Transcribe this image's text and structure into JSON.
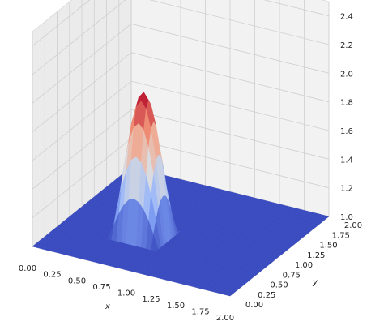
{
  "chart_data": {
    "type": "surface3d",
    "colormap": "coolwarm",
    "xlabel": "x",
    "ylabel": "y",
    "zlabel": "",
    "xlim": [
      0,
      2
    ],
    "ylim": [
      0,
      2
    ],
    "zlim": [
      1,
      2.5
    ],
    "x_ticks": [
      "0.00",
      "0.25",
      "0.50",
      "0.75",
      "1.00",
      "1.25",
      "1.50",
      "1.75",
      "2.00"
    ],
    "y_ticks": [
      "0.00",
      "0.25",
      "0.50",
      "0.75",
      "1.00",
      "1.25",
      "1.50",
      "1.75",
      "2.00"
    ],
    "z_ticks": [
      "1.0",
      "1.2",
      "1.4",
      "1.6",
      "1.8",
      "2.0",
      "2.2",
      "2.4"
    ],
    "grid": true,
    "surface": {
      "description_points": [
        {
          "x": 0.0,
          "y": 0.0,
          "z": 1.0
        },
        {
          "x": 0.5,
          "y": 0.5,
          "z": 1.0
        },
        {
          "x": 0.75,
          "y": 0.75,
          "z": 1.95
        },
        {
          "x": 1.0,
          "y": 1.0,
          "z": 1.0
        },
        {
          "x": 2.0,
          "y": 2.0,
          "z": 1.0
        }
      ],
      "base": 1.0,
      "peak": 2.0,
      "hump_x": [
        0.5,
        1.0
      ],
      "hump_y": [
        0.5,
        1.0
      ]
    }
  }
}
